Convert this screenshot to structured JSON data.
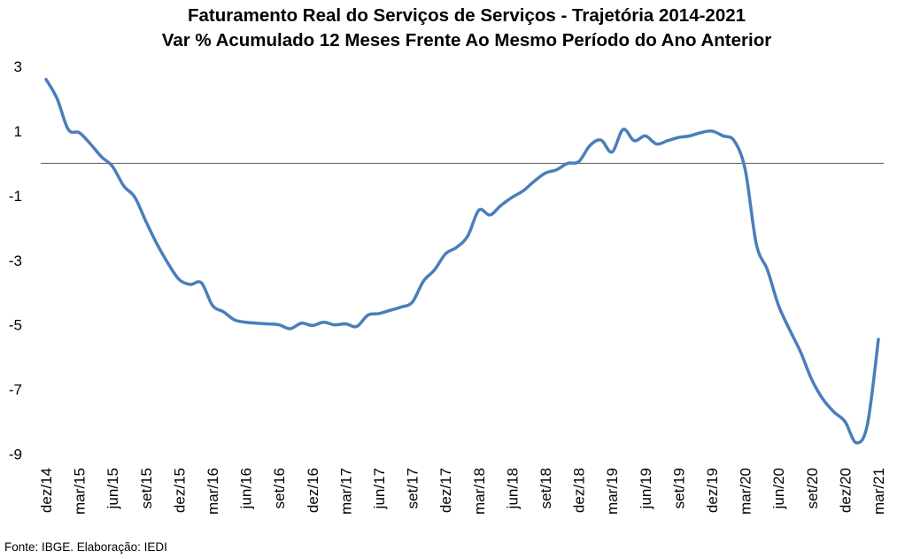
{
  "chart_data": {
    "type": "line",
    "title": "Faturamento Real do Serviços de Serviços - Trajetória 2014-2021",
    "subtitle": "Var % Acumulado 12 Meses Frente Ao Mesmo Período do Ano Anterior",
    "x_tick_labels": [
      "dez/14",
      "mar/15",
      "jun/15",
      "set/15",
      "dez/15",
      "mar/16",
      "jun/16",
      "set/16",
      "dez/16",
      "mar/17",
      "jun/17",
      "set/17",
      "dez/17",
      "mar/18",
      "jun/18",
      "set/18",
      "dez/18",
      "mar/19",
      "jun/19",
      "set/19",
      "dez/19",
      "mar/20",
      "jun/20",
      "set/20",
      "dez/20",
      "mar/21"
    ],
    "ylim": [
      -9,
      3
    ],
    "y_ticks": [
      3,
      1,
      -1,
      -3,
      -5,
      -7,
      -9
    ],
    "reference_line": {
      "value": 0,
      "color": "#595959"
    },
    "series": [
      {
        "color": "#4A7EBB",
        "values": [
          2.6,
          2.0,
          1.05,
          0.95,
          0.6,
          0.2,
          -0.1,
          -0.7,
          -1.05,
          -1.8,
          -2.5,
          -3.1,
          -3.6,
          -3.75,
          -3.7,
          -4.4,
          -4.6,
          -4.85,
          -4.92,
          -4.95,
          -4.97,
          -5.0,
          -5.12,
          -4.95,
          -5.02,
          -4.92,
          -5.0,
          -4.97,
          -5.05,
          -4.7,
          -4.65,
          -4.55,
          -4.45,
          -4.3,
          -3.65,
          -3.3,
          -2.8,
          -2.6,
          -2.25,
          -1.45,
          -1.6,
          -1.3,
          -1.05,
          -0.85,
          -0.55,
          -0.3,
          -0.2,
          0.0,
          0.05,
          0.55,
          0.72,
          0.35,
          1.05,
          0.7,
          0.85,
          0.6,
          0.7,
          0.8,
          0.85,
          0.95,
          1.0,
          0.85,
          0.7,
          -0.2,
          -2.5,
          -3.3,
          -4.4,
          -5.15,
          -5.85,
          -6.7,
          -7.3,
          -7.7,
          -8.0,
          -8.65,
          -8.1,
          -5.45
        ]
      }
    ],
    "grid": false,
    "legend": "none"
  },
  "source": "Fonte: IBGE. Elaboração: IEDI"
}
